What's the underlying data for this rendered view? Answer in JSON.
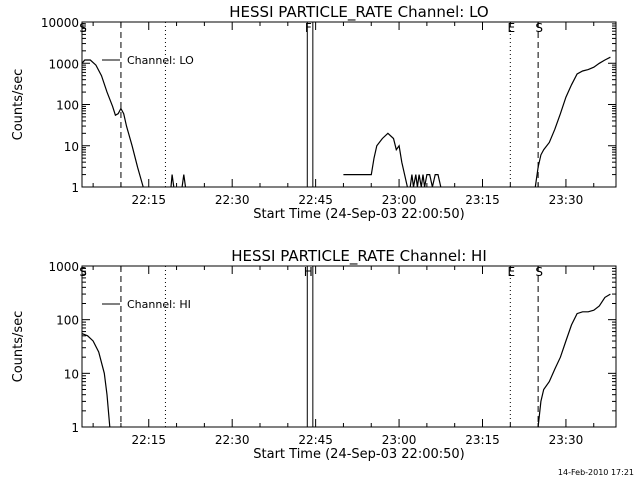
{
  "footer": {
    "timestamp": "14-Feb-2010 17:21"
  },
  "chart_data": [
    {
      "type": "line",
      "title": "HESSI PARTICLE_RATE Channel: LO",
      "xlabel": "Start Time (24-Sep-03 22:00:50)",
      "ylabel": "Counts/sec",
      "yscale": "log",
      "ylim": [
        1,
        10000
      ],
      "xlim_minutes": [
        "22:03",
        "23:39"
      ],
      "xticks": [
        "22:15",
        "22:30",
        "22:45",
        "23:00",
        "23:15",
        "23:30"
      ],
      "yticks": [
        "1",
        "10",
        "100",
        "1000",
        "10000"
      ],
      "legend": {
        "label": "Channel: LO",
        "placement": "top-left"
      },
      "markers": [
        {
          "label": "S",
          "time": "22:03",
          "style": "dash-dot"
        },
        {
          "label": "",
          "time": "22:10",
          "style": "dashed"
        },
        {
          "label": "",
          "time": "22:18",
          "style": "dotted"
        },
        {
          "label": "F",
          "time": "22:43.5",
          "style": "solid"
        },
        {
          "label": "",
          "time": "22:44.5",
          "style": "solid"
        },
        {
          "label": "E",
          "time": "23:20",
          "style": "dotted"
        },
        {
          "label": "S",
          "time": "23:25",
          "style": "dashed"
        },
        {
          "label": "",
          "time": "23:39",
          "style": "dash-dot"
        }
      ],
      "series": [
        {
          "segments": [
            [
              [
                "22:03",
                1000
              ],
              [
                "22:03.5",
                1200
              ],
              [
                "22:04.5",
                1200
              ],
              [
                "22:05.5",
                900
              ],
              [
                "22:06.5",
                500
              ],
              [
                "22:07.5",
                200
              ],
              [
                "22:08.5",
                90
              ],
              [
                "22:09",
                55
              ],
              [
                "22:09.5",
                60
              ],
              [
                "22:10",
                80
              ],
              [
                "22:10.5",
                60
              ],
              [
                "22:11",
                30
              ],
              [
                "22:12",
                10
              ],
              [
                "22:13",
                3
              ],
              [
                "22:14",
                1
              ]
            ],
            [
              [
                "22:19",
                1
              ],
              [
                "22:19.2",
                2
              ],
              [
                "22:19.5",
                1
              ]
            ],
            [
              [
                "22:21",
                1
              ],
              [
                "22:21.3",
                2
              ],
              [
                "22:21.6",
                1
              ]
            ],
            [
              [
                "22:50",
                2
              ],
              [
                "22:55",
                2
              ],
              [
                "22:55.5",
                5
              ],
              [
                "22:56",
                10
              ],
              [
                "22:57",
                15
              ],
              [
                "22:58",
                20
              ],
              [
                "22:59",
                15
              ],
              [
                "22:59.5",
                8
              ],
              [
                "23:00",
                10
              ],
              [
                "23:00.5",
                4
              ],
              [
                "23:01",
                2
              ],
              [
                "23:01.5",
                1
              ]
            ],
            [
              [
                "23:02",
                1
              ],
              [
                "23:02.3",
                2
              ],
              [
                "23:02.6",
                1
              ],
              [
                "23:03",
                2
              ],
              [
                "23:03.3",
                1
              ],
              [
                "23:03.6",
                2
              ],
              [
                "23:04",
                1
              ],
              [
                "23:04.3",
                2
              ],
              [
                "23:04.6",
                1
              ],
              [
                "23:05",
                2
              ],
              [
                "23:05.5",
                2
              ],
              [
                "23:06",
                1
              ],
              [
                "23:06.5",
                2
              ],
              [
                "23:07",
                2
              ],
              [
                "23:07.5",
                1
              ]
            ],
            [
              [
                "23:24.5",
                1
              ],
              [
                "23:25",
                3
              ],
              [
                "23:25.5",
                6
              ],
              [
                "23:26",
                8
              ],
              [
                "23:27",
                12
              ],
              [
                "23:28",
                25
              ],
              [
                "23:29",
                60
              ],
              [
                "23:30",
                150
              ],
              [
                "23:31",
                300
              ],
              [
                "23:32",
                550
              ],
              [
                "23:33",
                650
              ],
              [
                "23:34",
                700
              ],
              [
                "23:35",
                800
              ],
              [
                "23:36",
                1000
              ],
              [
                "23:37",
                1200
              ],
              [
                "23:38",
                1400
              ]
            ]
          ]
        }
      ]
    },
    {
      "type": "line",
      "title": "HESSI PARTICLE_RATE Channel: HI",
      "xlabel": "Start Time (24-Sep-03 22:00:50)",
      "ylabel": "Counts/sec",
      "yscale": "log",
      "ylim": [
        1,
        1000
      ],
      "xlim_minutes": [
        "22:03",
        "23:39"
      ],
      "xticks": [
        "22:15",
        "22:30",
        "22:45",
        "23:00",
        "23:15",
        "23:30"
      ],
      "yticks": [
        "1",
        "10",
        "100",
        "1000"
      ],
      "legend": {
        "label": "Channel: HI",
        "placement": "top-left"
      },
      "markers": [
        {
          "label": "S",
          "time": "22:03",
          "style": "dash-dot"
        },
        {
          "label": "",
          "time": "22:10",
          "style": "dashed"
        },
        {
          "label": "",
          "time": "22:18",
          "style": "dotted"
        },
        {
          "label": "H",
          "time": "22:43.5",
          "style": "solid"
        },
        {
          "label": "",
          "time": "22:44.5",
          "style": "solid"
        },
        {
          "label": "E",
          "time": "23:20",
          "style": "dotted"
        },
        {
          "label": "S",
          "time": "23:25",
          "style": "dashed"
        },
        {
          "label": "",
          "time": "23:39",
          "style": "dash-dot"
        }
      ],
      "series": [
        {
          "segments": [
            [
              [
                "22:03",
                55
              ],
              [
                "22:04",
                50
              ],
              [
                "22:05",
                40
              ],
              [
                "22:06",
                25
              ],
              [
                "22:07",
                10
              ],
              [
                "22:07.5",
                4
              ],
              [
                "22:08",
                1
              ]
            ],
            [
              [
                "23:25",
                1
              ],
              [
                "23:25.5",
                3
              ],
              [
                "23:26",
                5
              ],
              [
                "23:27",
                7
              ],
              [
                "23:28",
                12
              ],
              [
                "23:29",
                20
              ],
              [
                "23:30",
                40
              ],
              [
                "23:31",
                80
              ],
              [
                "23:32",
                130
              ],
              [
                "23:33",
                140
              ],
              [
                "23:34",
                140
              ],
              [
                "23:35",
                150
              ],
              [
                "23:36",
                180
              ],
              [
                "23:37",
                260
              ],
              [
                "23:38",
                300
              ]
            ]
          ]
        }
      ]
    }
  ]
}
